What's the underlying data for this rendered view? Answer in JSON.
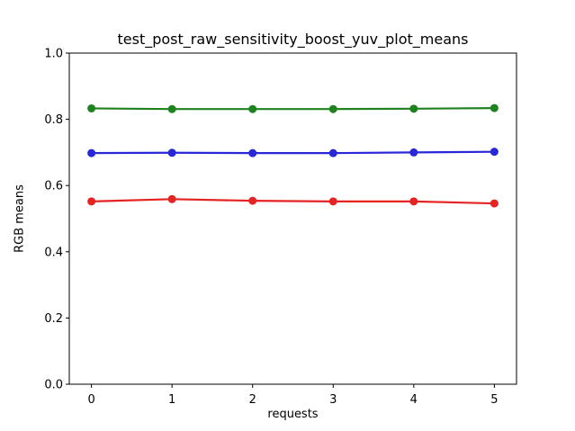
{
  "figure": {
    "background": "#ffffff",
    "text_color": "#000000",
    "spine_color": "#000000"
  },
  "chart_data": {
    "type": "line",
    "title": "test_post_raw_sensitivity_boost_yuv_plot_means",
    "xlabel": "requests",
    "ylabel": "RGB means",
    "x": [
      0,
      1,
      2,
      3,
      4,
      5
    ],
    "series": [
      {
        "name": "green-series",
        "color": "#1e821e",
        "values": [
          0.833,
          0.831,
          0.831,
          0.831,
          0.832,
          0.834
        ]
      },
      {
        "name": "blue-series",
        "color": "#2828d8",
        "values": [
          0.698,
          0.699,
          0.698,
          0.698,
          0.7,
          0.702
        ]
      },
      {
        "name": "red-series",
        "color": "#e62323",
        "values": [
          0.552,
          0.559,
          0.554,
          0.552,
          0.552,
          0.546
        ]
      }
    ],
    "xlim": [
      -0.275,
      5.275
    ],
    "ylim": [
      0.0,
      1.0
    ],
    "x_ticks": [
      "0",
      "1",
      "2",
      "3",
      "4",
      "5"
    ],
    "y_ticks": [
      "0.0",
      "0.2",
      "0.4",
      "0.6",
      "0.8",
      "1.0"
    ],
    "grid": false,
    "legend": "none",
    "marker": "circle",
    "line_width": 2.2,
    "marker_radius": 4.5
  }
}
